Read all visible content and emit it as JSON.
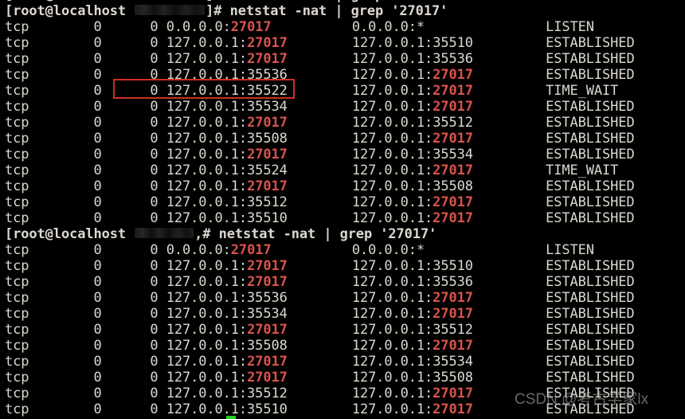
{
  "terminal": {
    "command": "netstat -nat | grep '27017'",
    "prompt_prefix": "[root@localhost ",
    "prompt_suffix_first": "]# ",
    "prompt_suffix_second": ",# ",
    "highlight_port": "27017",
    "colors": {
      "background": "#000000",
      "foreground": "#dcd8cf",
      "port_red": "#d9534b",
      "box_red": "#cf2e22",
      "cursor_green": "#1fd21f"
    },
    "sections": [
      {
        "rows": [
          {
            "proto": "tcp",
            "recvq": "0",
            "sendq": "0",
            "local": "0.0.0.0:27017",
            "foreign": "0.0.0.0:*",
            "state": "LISTEN"
          },
          {
            "proto": "tcp",
            "recvq": "0",
            "sendq": "0",
            "local": "127.0.0.1:27017",
            "foreign": "127.0.0.1:35510",
            "state": "ESTABLISHED"
          },
          {
            "proto": "tcp",
            "recvq": "0",
            "sendq": "0",
            "local": "127.0.0.1:27017",
            "foreign": "127.0.0.1:35536",
            "state": "ESTABLISHED"
          },
          {
            "proto": "tcp",
            "recvq": "0",
            "sendq": "0",
            "local": "127.0.0.1:35536",
            "foreign": "127.0.0.1:27017",
            "state": "ESTABLISHED"
          },
          {
            "proto": "tcp",
            "recvq": "0",
            "sendq": "0",
            "local": "127.0.0.1:35522",
            "foreign": "127.0.0.1:27017",
            "state": "TIME_WAIT",
            "boxed": true
          },
          {
            "proto": "tcp",
            "recvq": "0",
            "sendq": "0",
            "local": "127.0.0.1:35534",
            "foreign": "127.0.0.1:27017",
            "state": "ESTABLISHED"
          },
          {
            "proto": "tcp",
            "recvq": "0",
            "sendq": "0",
            "local": "127.0.0.1:27017",
            "foreign": "127.0.0.1:35512",
            "state": "ESTABLISHED"
          },
          {
            "proto": "tcp",
            "recvq": "0",
            "sendq": "0",
            "local": "127.0.0.1:35508",
            "foreign": "127.0.0.1:27017",
            "state": "ESTABLISHED"
          },
          {
            "proto": "tcp",
            "recvq": "0",
            "sendq": "0",
            "local": "127.0.0.1:27017",
            "foreign": "127.0.0.1:35534",
            "state": "ESTABLISHED"
          },
          {
            "proto": "tcp",
            "recvq": "0",
            "sendq": "0",
            "local": "127.0.0.1:35524",
            "foreign": "127.0.0.1:27017",
            "state": "TIME_WAIT"
          },
          {
            "proto": "tcp",
            "recvq": "0",
            "sendq": "0",
            "local": "127.0.0.1:27017",
            "foreign": "127.0.0.1:35508",
            "state": "ESTABLISHED"
          },
          {
            "proto": "tcp",
            "recvq": "0",
            "sendq": "0",
            "local": "127.0.0.1:35512",
            "foreign": "127.0.0.1:27017",
            "state": "ESTABLISHED"
          },
          {
            "proto": "tcp",
            "recvq": "0",
            "sendq": "0",
            "local": "127.0.0.1:35510",
            "foreign": "127.0.0.1:27017",
            "state": "ESTABLISHED"
          }
        ]
      },
      {
        "rows": [
          {
            "proto": "tcp",
            "recvq": "0",
            "sendq": "0",
            "local": "0.0.0.0:27017",
            "foreign": "0.0.0.0:*",
            "state": "LISTEN"
          },
          {
            "proto": "tcp",
            "recvq": "0",
            "sendq": "0",
            "local": "127.0.0.1:27017",
            "foreign": "127.0.0.1:35510",
            "state": "ESTABLISHED"
          },
          {
            "proto": "tcp",
            "recvq": "0",
            "sendq": "0",
            "local": "127.0.0.1:27017",
            "foreign": "127.0.0.1:35536",
            "state": "ESTABLISHED"
          },
          {
            "proto": "tcp",
            "recvq": "0",
            "sendq": "0",
            "local": "127.0.0.1:35536",
            "foreign": "127.0.0.1:27017",
            "state": "ESTABLISHED"
          },
          {
            "proto": "tcp",
            "recvq": "0",
            "sendq": "0",
            "local": "127.0.0.1:35534",
            "foreign": "127.0.0.1:27017",
            "state": "ESTABLISHED"
          },
          {
            "proto": "tcp",
            "recvq": "0",
            "sendq": "0",
            "local": "127.0.0.1:27017",
            "foreign": "127.0.0.1:35512",
            "state": "ESTABLISHED"
          },
          {
            "proto": "tcp",
            "recvq": "0",
            "sendq": "0",
            "local": "127.0.0.1:35508",
            "foreign": "127.0.0.1:27017",
            "state": "ESTABLISHED"
          },
          {
            "proto": "tcp",
            "recvq": "0",
            "sendq": "0",
            "local": "127.0.0.1:27017",
            "foreign": "127.0.0.1:35534",
            "state": "ESTABLISHED"
          },
          {
            "proto": "tcp",
            "recvq": "0",
            "sendq": "0",
            "local": "127.0.0.1:27017",
            "foreign": "127.0.0.1:35508",
            "state": "ESTABLISHED"
          },
          {
            "proto": "tcp",
            "recvq": "0",
            "sendq": "0",
            "local": "127.0.0.1:35512",
            "foreign": "127.0.0.1:27017",
            "state": "ESTABLISHED"
          },
          {
            "proto": "tcp",
            "recvq": "0",
            "sendq": "0",
            "local": "127.0.0.1:35510",
            "foreign": "127.0.0.1:27017",
            "state": "ESTABLISHED"
          }
        ]
      }
    ]
  },
  "watermark": {
    "text": "CSDN @考古学家lx"
  }
}
